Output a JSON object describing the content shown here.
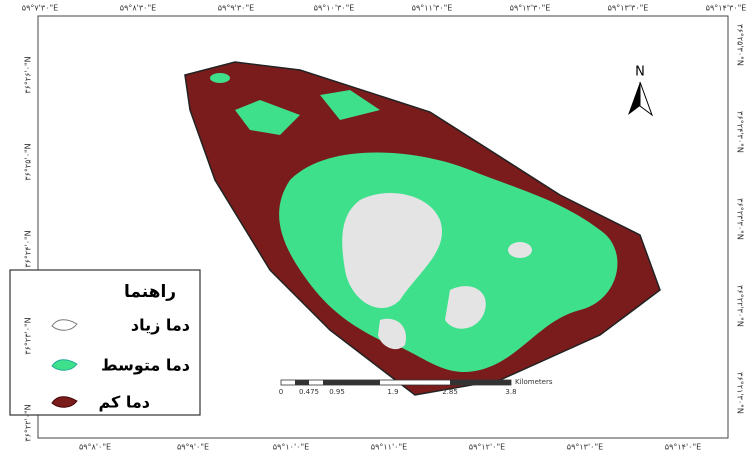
{
  "map": {
    "top_labels": [
      "۵۹°۷'۳۰\"E",
      "۵۹°۸'۳۰\"E",
      "۵۹°۹'۳۰\"E",
      "۵۹°۱۰'۳۰\"E",
      "۵۹°۱۱'۳۰\"E",
      "۵۹°۱۲'۳۰\"E",
      "۵۹°۱۳'۳۰\"E",
      "۵۹°۱۴'۳۰\"E"
    ],
    "bottom_labels": [
      "۵۹°۸'۰\"E",
      "۵۹°۹'۰\"E",
      "۵۹°۱۰'۰\"E",
      "۵۹°۱۱'۰\"E",
      "۵۹°۱۲'۰\"E",
      "۵۹°۱۳'۰\"E",
      "۵۹°۱۴'۰\"E"
    ],
    "left_labels": [
      "۳۶°۲۶'۰\"N",
      "۳۶°۲۵'۰\"N",
      "۳۶°۲۴'۰\"N",
      "۳۶°۲۳'۰\"N",
      "۳۶°۲۲'۰\"N"
    ],
    "right_labels": [
      "۳۶°۲۵'۳۰\"N",
      "۳۶°۲۴'۳۰\"N",
      "۳۶°۲۳'۳۰\"N",
      "۳۶°۲۲'۳۰\"N",
      "۳۶°۲۱'۳۰\"N"
    ],
    "north": "N",
    "legend": {
      "title": "راهنما",
      "items": [
        "دما زیاد",
        "دما متوسط",
        "دما کم"
      ]
    },
    "scale": {
      "ticks": [
        "0",
        "0.475",
        "0.95",
        "1.9",
        "2.85",
        "3.8"
      ],
      "unit": "Kilometers"
    }
  }
}
